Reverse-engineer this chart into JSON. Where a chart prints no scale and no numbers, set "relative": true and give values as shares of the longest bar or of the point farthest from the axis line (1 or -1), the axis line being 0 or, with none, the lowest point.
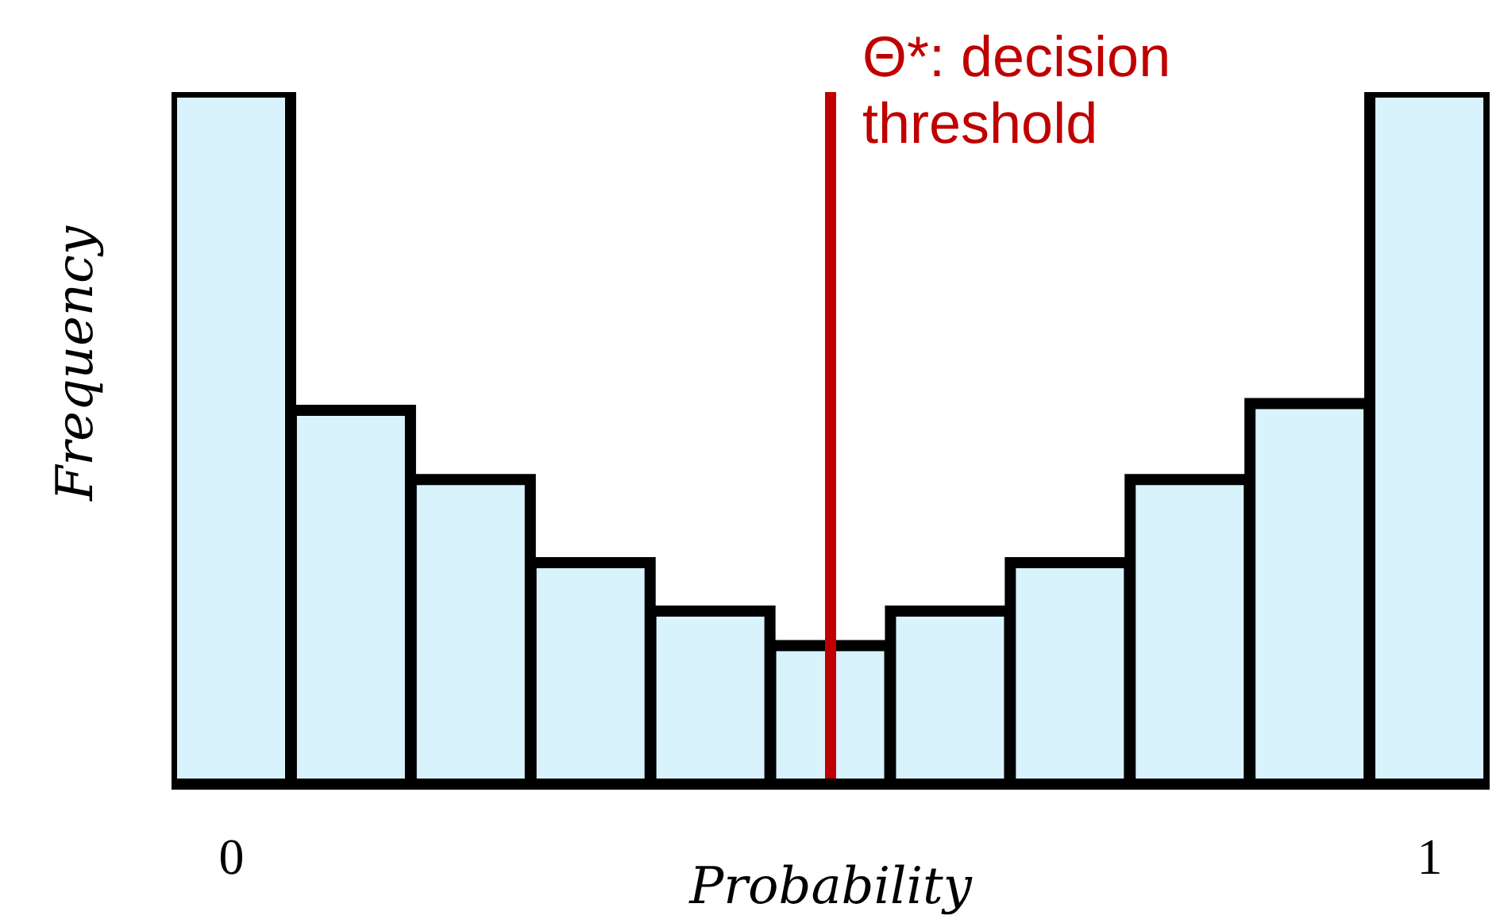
{
  "chart_data": {
    "type": "bar",
    "relative": true,
    "x": [
      0,
      0.1,
      0.2,
      0.3,
      0.4,
      0.5,
      0.6,
      0.7,
      0.8,
      0.9,
      1
    ],
    "values": [
      1,
      0.54,
      0.44,
      0.32,
      0.25,
      0.2,
      0.25,
      0.32,
      0.44,
      0.55,
      1
    ],
    "color": "#d9f3fc",
    "xlim": [
      -0.05,
      1.05
    ],
    "xticks": [
      0,
      1
    ],
    "xlabel": "Probability",
    "ylabel": "Frequency",
    "ref_lines": [
      {
        "axis": "x",
        "value": 0.5,
        "label": "Θ*: decision threshold",
        "color": "#c00000"
      }
    ],
    "tick_labels": "x"
  }
}
